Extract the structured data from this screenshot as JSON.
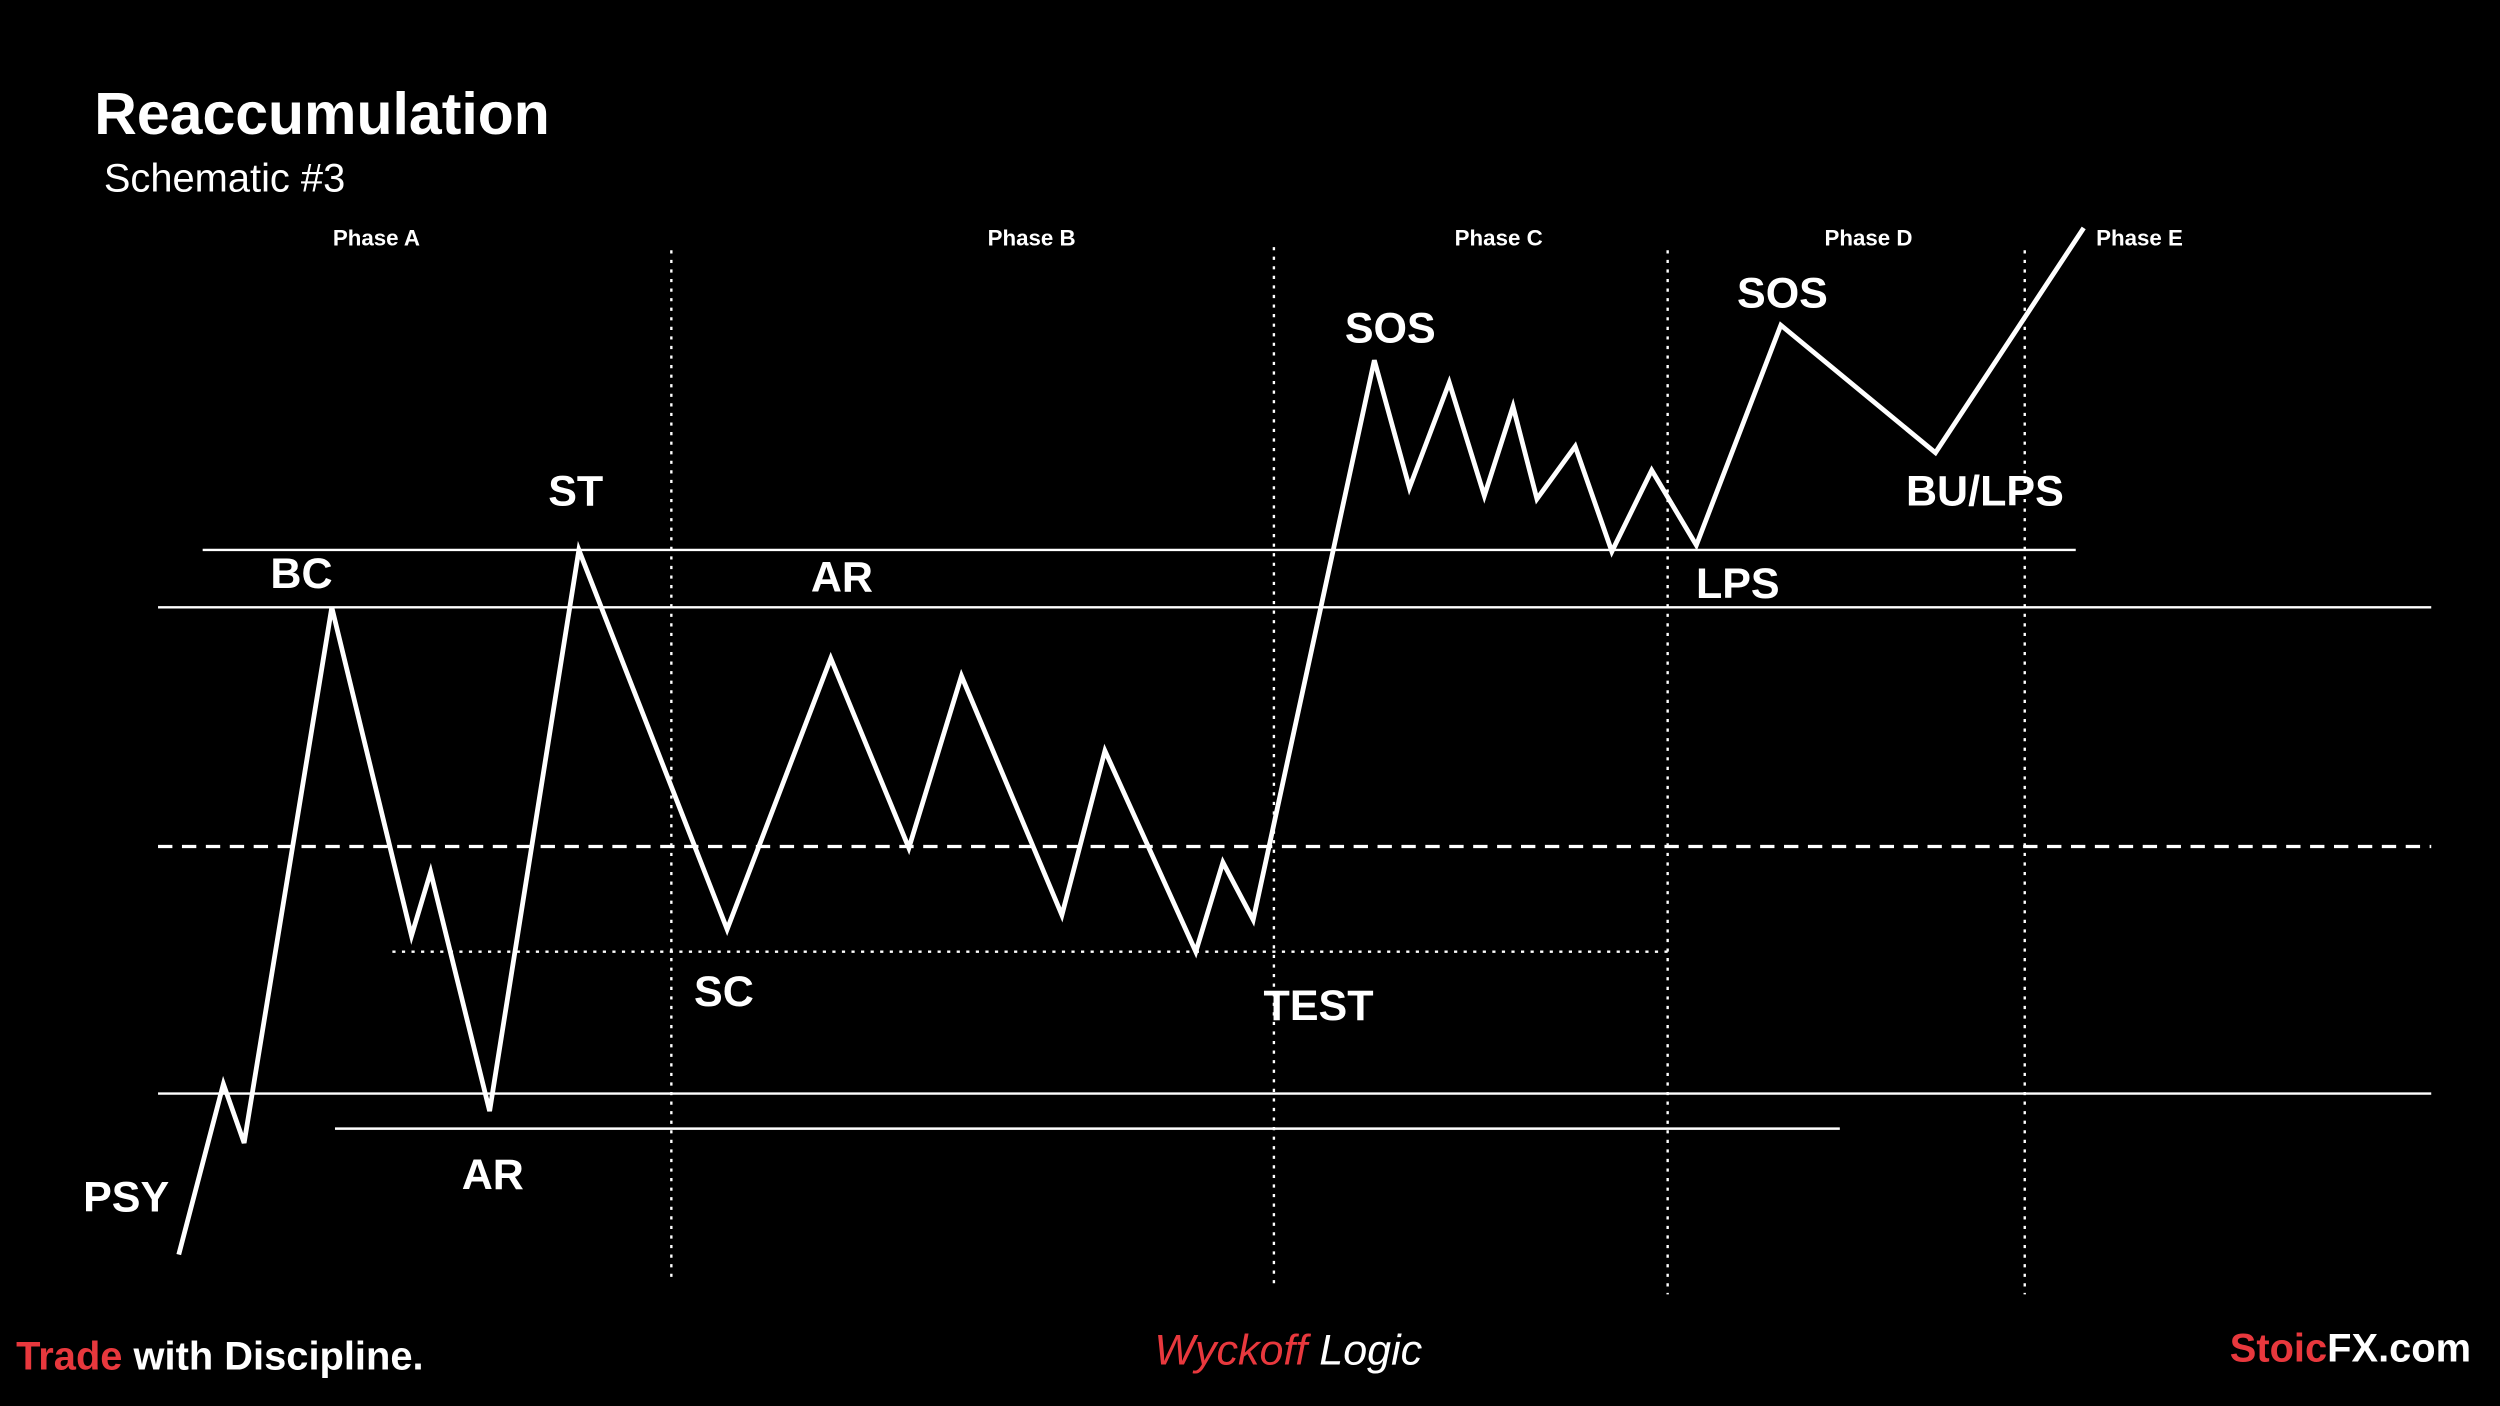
{
  "header": {
    "title": "Reaccumulation",
    "subtitle": "Schematic #3"
  },
  "phases": [
    "Phase A",
    "Phase B",
    "Phase C",
    "Phase D",
    "Phase E"
  ],
  "labels": [
    "PSY",
    "BC",
    "AR",
    "ST",
    "SC",
    "AR",
    "TEST",
    "SOS",
    "SOS",
    "LPS",
    "BU/LPS"
  ],
  "footer": {
    "tagline": {
      "accent": "Trade",
      "rest": " with Discipline."
    },
    "center": {
      "accent": "Wyckoff",
      "rest": " Logic"
    },
    "brand": {
      "accent": "Stoic",
      "rest": "FX.com"
    }
  }
}
